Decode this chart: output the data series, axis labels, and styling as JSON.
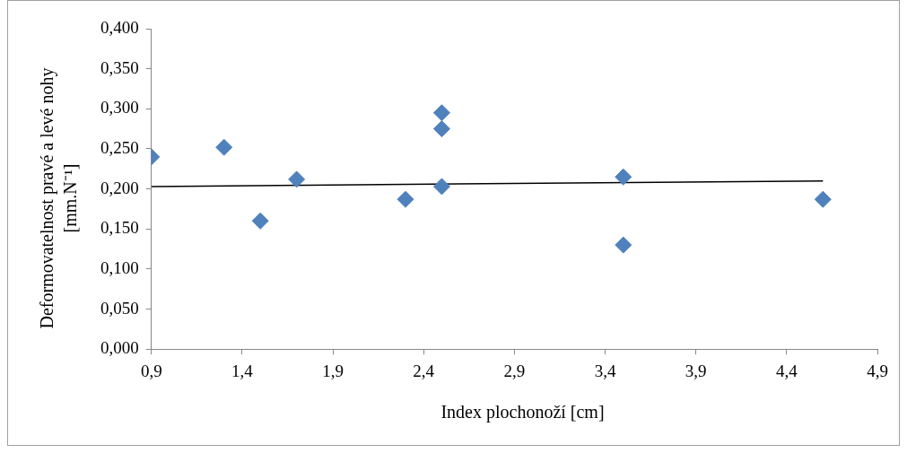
{
  "chart_data": {
    "type": "scatter",
    "xlabel": "Index plochonoží [cm]",
    "ylabel": "Deformovatelnost pravé a levé nohy [mm.N⁻¹]",
    "marker": "diamond",
    "grid": false,
    "legend": false,
    "xlim": [
      0.9,
      4.9
    ],
    "ylim": [
      0,
      0.4
    ],
    "xticks": [
      {
        "value": 0.9,
        "label": "0,9"
      },
      {
        "value": 1.4,
        "label": "1,4"
      },
      {
        "value": 1.9,
        "label": "1,9"
      },
      {
        "value": 2.4,
        "label": "2,4"
      },
      {
        "value": 2.9,
        "label": "2,9"
      },
      {
        "value": 3.4,
        "label": "3,4"
      },
      {
        "value": 3.9,
        "label": "3,9"
      },
      {
        "value": 4.4,
        "label": "4,4"
      },
      {
        "value": 4.9,
        "label": "4,9"
      }
    ],
    "yticks": [
      {
        "value": 0,
        "label": "0,000"
      },
      {
        "value": 0.05,
        "label": "0,050"
      },
      {
        "value": 0.1,
        "label": "0,100"
      },
      {
        "value": 0.15,
        "label": "0,150"
      },
      {
        "value": 0.2,
        "label": "0,200"
      },
      {
        "value": 0.25,
        "label": "0,250"
      },
      {
        "value": 0.3,
        "label": "0,300"
      },
      {
        "value": 0.35,
        "label": "0,350"
      },
      {
        "value": 0.4,
        "label": "0,400"
      }
    ],
    "series": [
      {
        "type": "scatter",
        "color": "#4f81bd",
        "x": [
          0.9,
          1.3,
          1.5,
          1.7,
          2.3,
          2.5,
          2.5,
          2.5,
          3.5,
          3.5,
          4.6
        ],
        "values": [
          0.24,
          0.252,
          0.16,
          0.212,
          0.187,
          0.295,
          0.275,
          0.203,
          0.215,
          0.13,
          0.187
        ]
      },
      {
        "type": "line",
        "color": "#000000",
        "marker": "none",
        "x": [
          0.9,
          4.6
        ],
        "values": [
          0.203,
          0.21
        ]
      }
    ]
  }
}
